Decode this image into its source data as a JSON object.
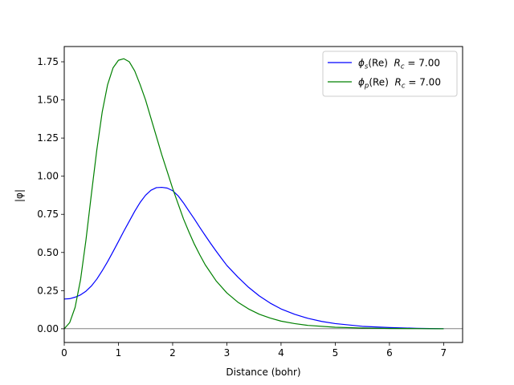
{
  "chart_data": {
    "type": "line",
    "xlabel": "Distance (bohr)",
    "ylabel": "|φ|",
    "xlim": [
      0,
      7.35
    ],
    "ylim": [
      -0.09,
      1.85
    ],
    "xticks": [
      0,
      1,
      2,
      3,
      4,
      5,
      6,
      7
    ],
    "xtick_labels": [
      "0",
      "1",
      "2",
      "3",
      "4",
      "5",
      "6",
      "7"
    ],
    "yticks": [
      0.0,
      0.25,
      0.5,
      0.75,
      1.0,
      1.25,
      1.5,
      1.75
    ],
    "ytick_labels": [
      "0.00",
      "0.25",
      "0.50",
      "0.75",
      "1.00",
      "1.25",
      "1.50",
      "1.75"
    ],
    "hline": 0,
    "grid": false,
    "legend_position": "top-right",
    "series": [
      {
        "name": "φs(Re)  Rc = 7.00",
        "legend": {
          "phi_sub": "s",
          "label_rest": "(Re)  ",
          "rc_text": " = 7.00"
        },
        "color": "#0000ff",
        "x": [
          0,
          0.1,
          0.2,
          0.3,
          0.4,
          0.5,
          0.6,
          0.7,
          0.8,
          0.9,
          1.0,
          1.1,
          1.2,
          1.3,
          1.4,
          1.5,
          1.6,
          1.7,
          1.8,
          1.9,
          2.0,
          2.1,
          2.2,
          2.3,
          2.4,
          2.5,
          2.6,
          2.7,
          2.8,
          2.9,
          3.0,
          3.2,
          3.4,
          3.6,
          3.8,
          4.0,
          4.25,
          4.5,
          4.75,
          5.0,
          5.5,
          6.0,
          6.5,
          7.0
        ],
        "y": [
          0.195,
          0.197,
          0.207,
          0.222,
          0.246,
          0.28,
          0.325,
          0.38,
          0.44,
          0.505,
          0.572,
          0.64,
          0.705,
          0.77,
          0.828,
          0.875,
          0.908,
          0.925,
          0.927,
          0.922,
          0.905,
          0.872,
          0.825,
          0.772,
          0.72,
          0.665,
          0.612,
          0.56,
          0.51,
          0.462,
          0.415,
          0.34,
          0.272,
          0.215,
          0.168,
          0.13,
          0.095,
          0.068,
          0.048,
          0.034,
          0.016,
          0.008,
          0.003,
          0.0
        ]
      },
      {
        "name": "φp(Re)  Rc = 7.00",
        "legend": {
          "phi_sub": "p",
          "label_rest": "(Re)  ",
          "rc_text": " = 7.00"
        },
        "color": "#008000",
        "x": [
          0,
          0.1,
          0.2,
          0.3,
          0.4,
          0.5,
          0.6,
          0.7,
          0.8,
          0.9,
          1.0,
          1.1,
          1.2,
          1.3,
          1.4,
          1.5,
          1.6,
          1.7,
          1.8,
          1.9,
          2.0,
          2.1,
          2.2,
          2.3,
          2.4,
          2.5,
          2.6,
          2.8,
          3.0,
          3.2,
          3.4,
          3.6,
          3.8,
          4.0,
          4.25,
          4.5,
          5.0,
          5.5,
          6.0,
          6.5,
          7.0
        ],
        "y": [
          0.0,
          0.04,
          0.14,
          0.32,
          0.58,
          0.88,
          1.17,
          1.42,
          1.6,
          1.71,
          1.76,
          1.77,
          1.75,
          1.69,
          1.6,
          1.5,
          1.38,
          1.26,
          1.14,
          1.03,
          0.92,
          0.82,
          0.72,
          0.635,
          0.555,
          0.485,
          0.42,
          0.315,
          0.235,
          0.175,
          0.13,
          0.095,
          0.07,
          0.05,
          0.034,
          0.022,
          0.01,
          0.005,
          0.002,
          0.001,
          0.0
        ]
      }
    ]
  }
}
